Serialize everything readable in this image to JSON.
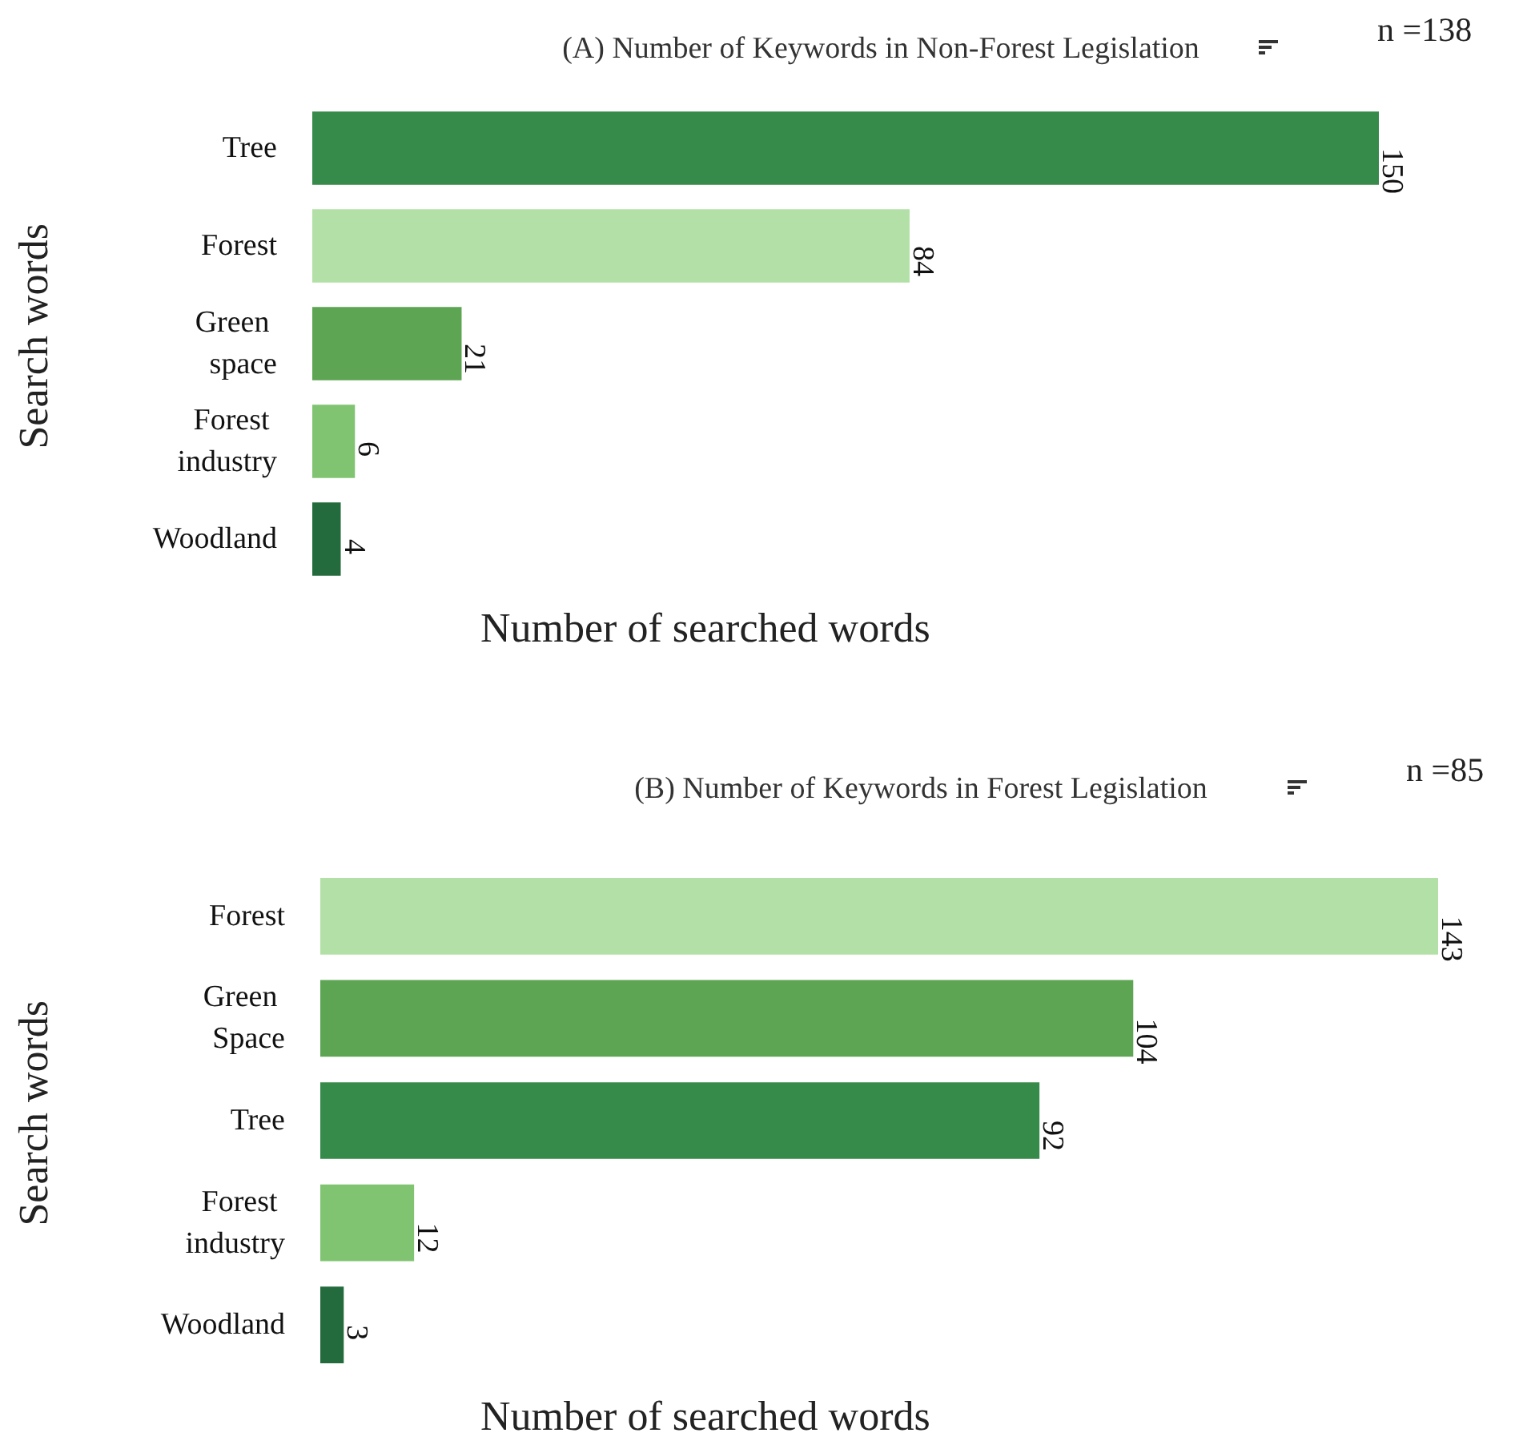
{
  "chart_data": [
    {
      "type": "bar",
      "orientation": "horizontal",
      "title": "(A) Number of Keywords in Non-Forest Legislation",
      "xlabel": "Number of searched words",
      "ylabel": "Search words",
      "annotations": [
        "n =138"
      ],
      "categories": [
        "Tree",
        "Forest",
        "Green space",
        "Forest industry",
        "Woodland"
      ],
      "values": [
        150,
        84,
        21,
        6,
        4
      ],
      "colors": [
        "#368a4a",
        "#b3e0a6",
        "#5da453",
        "#80c471",
        "#236b3c"
      ],
      "data_labels": true
    },
    {
      "type": "bar",
      "orientation": "horizontal",
      "title": "(B) Number of Keywords in Forest Legislation",
      "xlabel": "Number of searched words",
      "ylabel": "Search words",
      "annotations": [
        "n =85"
      ],
      "categories": [
        "Forest",
        "Green Space",
        "Tree",
        "Forest industry",
        "Woodland"
      ],
      "values": [
        143,
        104,
        92,
        12,
        3
      ],
      "colors": [
        "#b3e0a6",
        "#5da453",
        "#368a4a",
        "#80c471",
        "#236b3c"
      ],
      "data_labels": true
    }
  ]
}
